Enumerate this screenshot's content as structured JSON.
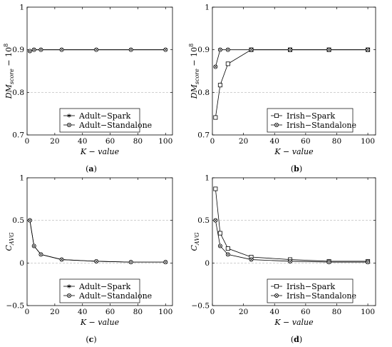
{
  "chart_data": [
    {
      "type": "line",
      "panel_label": "a",
      "ylabel": "DMscore − 10^8",
      "ylabel_main": "DM",
      "ylabel_sub": "score",
      "ylabel_rest": " − 10",
      "ylabel_sup": "8",
      "xlabel": "K − value",
      "xlim": [
        0,
        105
      ],
      "ylim": [
        0.7,
        1
      ],
      "xticks": [
        0,
        20,
        40,
        60,
        80,
        100
      ],
      "yticks": [
        0.7,
        0.8,
        0.9,
        1
      ],
      "ytick_labels": [
        "0.7",
        "0.8",
        "0.9",
        "1"
      ],
      "grid_lines": [
        0.8
      ],
      "legend_position": "bottom-center",
      "series": [
        {
          "name": "Adult−Spark",
          "marker": "star",
          "x": [
            2,
            5,
            10,
            25,
            50,
            75,
            100
          ],
          "y": [
            0.897,
            0.9,
            0.9,
            0.9,
            0.9,
            0.9,
            0.9
          ]
        },
        {
          "name": "Adult−Standalone",
          "marker": "circle",
          "x": [
            2,
            5,
            10,
            25,
            50,
            75,
            100
          ],
          "y": [
            0.897,
            0.9,
            0.9,
            0.9,
            0.9,
            0.9,
            0.9
          ]
        }
      ]
    },
    {
      "type": "line",
      "panel_label": "b",
      "ylabel": "DMscore − 10^8",
      "ylabel_main": "DM",
      "ylabel_sub": "score",
      "ylabel_rest": " − 10",
      "ylabel_sup": "8",
      "xlabel": "K − value",
      "xlim": [
        0,
        105
      ],
      "ylim": [
        0.7,
        1
      ],
      "xticks": [
        0,
        20,
        40,
        60,
        80,
        100
      ],
      "yticks": [
        0.7,
        0.8,
        0.9,
        1
      ],
      "ytick_labels": [
        "0.7",
        "0.8",
        "0.9",
        "1"
      ],
      "grid_lines": [
        0.8
      ],
      "legend_position": "bottom-right",
      "series": [
        {
          "name": "Irish−Spark",
          "marker": "square",
          "x": [
            2,
            5,
            10,
            25,
            50,
            75,
            100
          ],
          "y": [
            0.741,
            0.817,
            0.867,
            0.9,
            0.9,
            0.9,
            0.9
          ]
        },
        {
          "name": "Irish−Standalone",
          "marker": "circle",
          "x": [
            2,
            5,
            10,
            25,
            50,
            75,
            100
          ],
          "y": [
            0.86,
            0.9,
            0.9,
            0.9,
            0.9,
            0.9,
            0.9
          ]
        }
      ]
    },
    {
      "type": "line",
      "panel_label": "c",
      "ylabel": "CAVG",
      "ylabel_main": "C",
      "ylabel_sub": "AVG",
      "ylabel_rest": "",
      "ylabel_sup": "",
      "xlabel": "K − value",
      "xlim": [
        0,
        105
      ],
      "ylim": [
        -0.5,
        1
      ],
      "xticks": [
        0,
        20,
        40,
        60,
        80,
        100
      ],
      "yticks": [
        -0.5,
        0,
        0.5,
        1
      ],
      "ytick_labels": [
        "−0.5",
        "0",
        "0.5",
        "1"
      ],
      "grid_lines": [
        0,
        0.5
      ],
      "legend_position": "bottom-center",
      "series": [
        {
          "name": "Adult−Spark",
          "marker": "star",
          "x": [
            2,
            5,
            10,
            25,
            50,
            75,
            100
          ],
          "y": [
            0.5,
            0.2,
            0.1,
            0.04,
            0.02,
            0.01,
            0.01
          ]
        },
        {
          "name": "Adult−Standalone",
          "marker": "circle",
          "x": [
            2,
            5,
            10,
            25,
            50,
            75,
            100
          ],
          "y": [
            0.5,
            0.2,
            0.1,
            0.04,
            0.02,
            0.01,
            0.01
          ]
        }
      ]
    },
    {
      "type": "line",
      "panel_label": "d",
      "ylabel": "CAVG",
      "ylabel_main": "C",
      "ylabel_sub": "AVG",
      "ylabel_rest": "",
      "ylabel_sup": "",
      "xlabel": "K − value",
      "xlim": [
        0,
        105
      ],
      "ylim": [
        -0.5,
        1
      ],
      "xticks": [
        0,
        20,
        40,
        60,
        80,
        100
      ],
      "yticks": [
        -0.5,
        0,
        0.5,
        1
      ],
      "ytick_labels": [
        "−0.5",
        "0",
        "0.5",
        "1"
      ],
      "grid_lines": [
        0,
        0.5
      ],
      "legend_position": "bottom-right",
      "series": [
        {
          "name": "Irish−Spark",
          "marker": "square",
          "x": [
            2,
            5,
            10,
            25,
            50,
            75,
            100
          ],
          "y": [
            0.87,
            0.35,
            0.17,
            0.07,
            0.04,
            0.02,
            0.02
          ]
        },
        {
          "name": "Irish−Standalone",
          "marker": "circle",
          "x": [
            2,
            5,
            10,
            25,
            50,
            75,
            100
          ],
          "y": [
            0.5,
            0.2,
            0.1,
            0.04,
            0.02,
            0.01,
            0.01
          ]
        }
      ]
    }
  ]
}
